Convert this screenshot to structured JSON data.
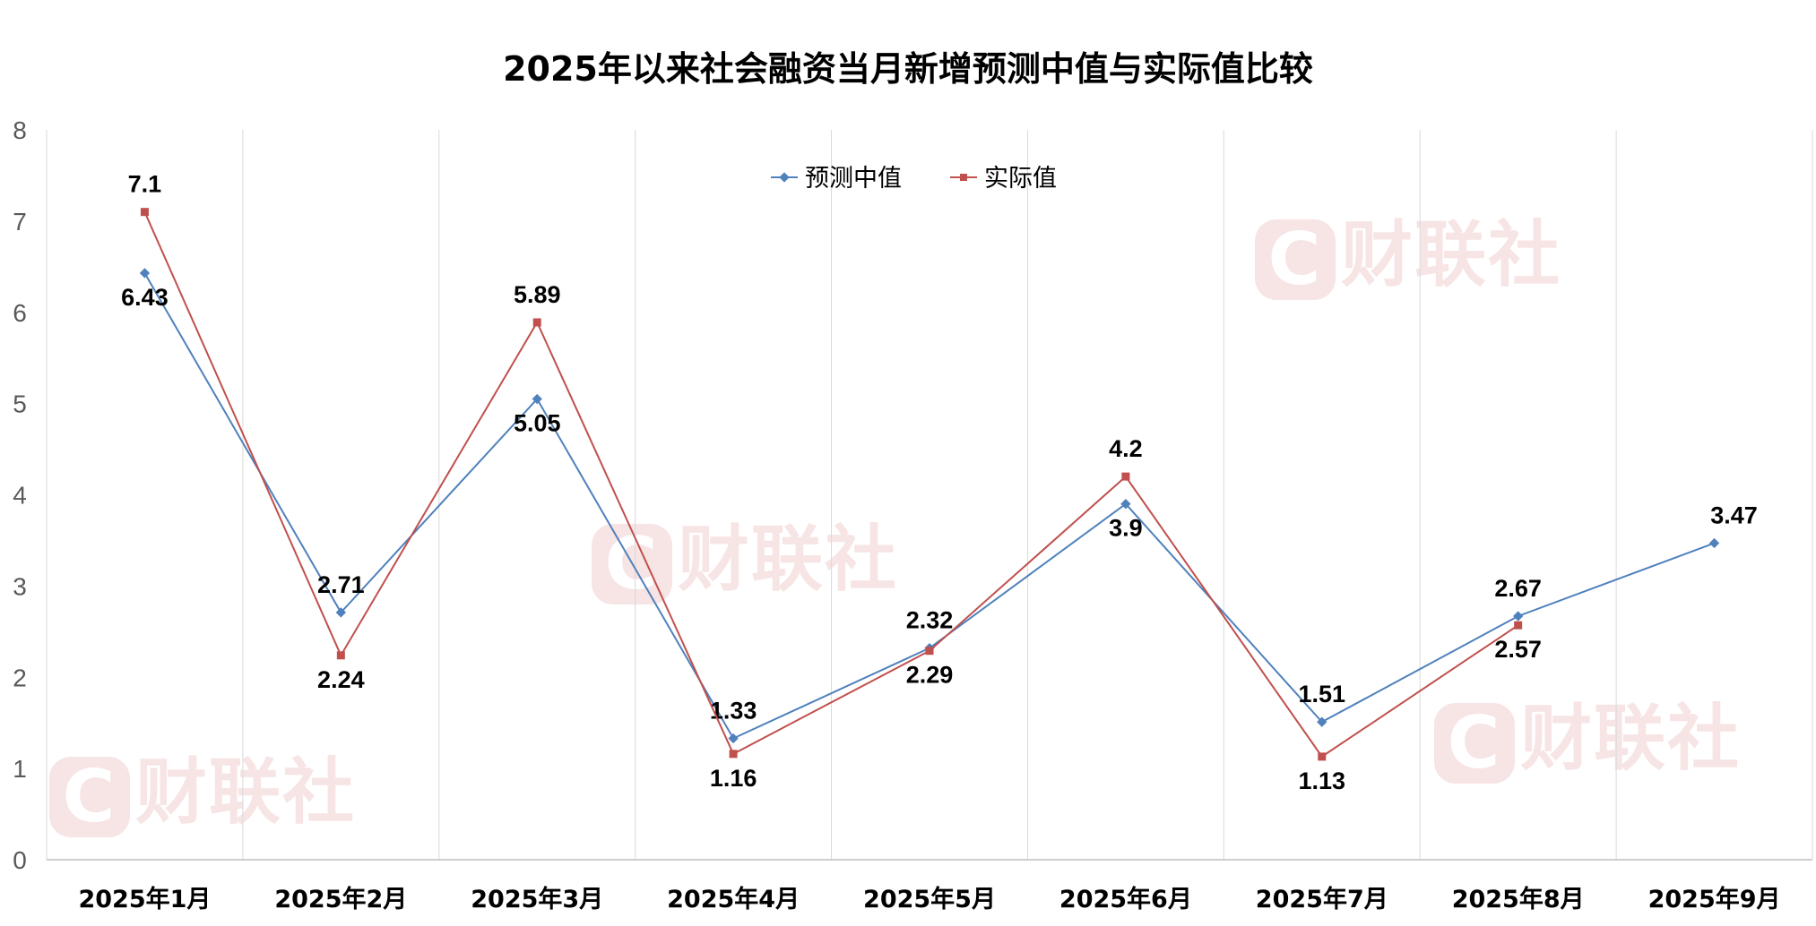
{
  "chart_data": {
    "type": "line",
    "title": "2025年以来社会融资当月新增预测中值与实际值比较",
    "categories": [
      "2025年1月",
      "2025年2月",
      "2025年3月",
      "2025年4月",
      "2025年5月",
      "2025年6月",
      "2025年7月",
      "2025年8月",
      "2025年9月"
    ],
    "series": [
      {
        "name": "预测中值",
        "color": "#4f81bd",
        "marker": "diamond",
        "values": [
          6.43,
          2.71,
          5.05,
          1.33,
          2.32,
          3.9,
          1.51,
          2.67,
          3.47
        ]
      },
      {
        "name": "实际值",
        "color": "#c0504d",
        "marker": "square",
        "values": [
          7.1,
          2.24,
          5.89,
          1.16,
          2.29,
          4.2,
          1.13,
          2.57,
          null
        ]
      }
    ],
    "ylim": [
      0,
      8
    ],
    "yticks": [
      0,
      1,
      2,
      3,
      4,
      5,
      6,
      7,
      8
    ],
    "grid": "vertical",
    "legend": "top-center",
    "xlabel": "",
    "ylabel": ""
  },
  "watermark": "财联社"
}
